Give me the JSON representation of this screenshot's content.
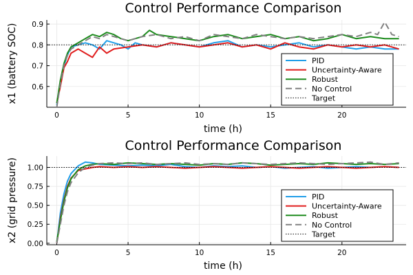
{
  "chart_data": [
    {
      "type": "line",
      "title": "Control Performance Comparison",
      "xlabel": "time (h)",
      "ylabel": "x1 (battery SOC)",
      "xlim": [
        -0.7,
        24.5
      ],
      "ylim": [
        0.5,
        0.92
      ],
      "xticks": [
        0,
        5,
        10,
        15,
        20
      ],
      "yticks": [
        0.6,
        0.7,
        0.8,
        0.9
      ],
      "ytick_labels": [
        "0.6",
        "0.7",
        "0.8",
        "0.9"
      ],
      "grid": true,
      "legend_position": "bottom-right",
      "target": 0.8,
      "target_label": "Target",
      "series": [
        {
          "name": "PID",
          "color": "#1f9ee8",
          "dash": "solid",
          "points": [
            [
              0,
              0.51
            ],
            [
              0.25,
              0.62
            ],
            [
              0.5,
              0.7
            ],
            [
              0.75,
              0.75
            ],
            [
              1,
              0.79
            ],
            [
              1.5,
              0.8
            ],
            [
              2,
              0.81
            ],
            [
              2.5,
              0.8
            ],
            [
              3,
              0.78
            ],
            [
              3.5,
              0.82
            ],
            [
              4,
              0.81
            ],
            [
              4.5,
              0.8
            ],
            [
              5,
              0.78
            ],
            [
              5.5,
              0.81
            ],
            [
              6,
              0.8
            ],
            [
              7,
              0.79
            ],
            [
              8,
              0.81
            ],
            [
              9,
              0.8
            ],
            [
              10,
              0.79
            ],
            [
              11,
              0.81
            ],
            [
              12,
              0.82
            ],
            [
              13,
              0.79
            ],
            [
              14,
              0.8
            ],
            [
              15,
              0.79
            ],
            [
              16,
              0.8
            ],
            [
              17,
              0.81
            ],
            [
              18,
              0.79
            ],
            [
              19,
              0.8
            ],
            [
              20,
              0.79
            ],
            [
              21,
              0.78
            ],
            [
              22,
              0.79
            ],
            [
              23,
              0.78
            ],
            [
              24,
              0.78
            ]
          ]
        },
        {
          "name": "Uncertainty-Aware",
          "color": "#e01b1b",
          "dash": "solid",
          "points": [
            [
              0,
              0.52
            ],
            [
              0.25,
              0.6
            ],
            [
              0.5,
              0.69
            ],
            [
              0.75,
              0.72
            ],
            [
              1,
              0.76
            ],
            [
              1.5,
              0.78
            ],
            [
              2,
              0.76
            ],
            [
              2.5,
              0.74
            ],
            [
              3,
              0.79
            ],
            [
              3.5,
              0.76
            ],
            [
              4,
              0.78
            ],
            [
              5,
              0.79
            ],
            [
              6,
              0.8
            ],
            [
              7,
              0.79
            ],
            [
              8,
              0.81
            ],
            [
              9,
              0.8
            ],
            [
              10,
              0.79
            ],
            [
              11,
              0.8
            ],
            [
              12,
              0.81
            ],
            [
              13,
              0.79
            ],
            [
              14,
              0.8
            ],
            [
              15,
              0.78
            ],
            [
              16,
              0.81
            ],
            [
              17,
              0.79
            ],
            [
              18,
              0.78
            ],
            [
              19,
              0.8
            ],
            [
              20,
              0.79
            ],
            [
              21,
              0.8
            ],
            [
              22,
              0.79
            ],
            [
              23,
              0.8
            ],
            [
              24,
              0.78
            ]
          ]
        },
        {
          "name": "Robust",
          "color": "#1c8a1c",
          "dash": "solid",
          "points": [
            [
              0,
              0.52
            ],
            [
              0.25,
              0.63
            ],
            [
              0.5,
              0.71
            ],
            [
              0.75,
              0.76
            ],
            [
              1,
              0.79
            ],
            [
              1.5,
              0.81
            ],
            [
              2,
              0.83
            ],
            [
              2.5,
              0.85
            ],
            [
              3,
              0.84
            ],
            [
              3.5,
              0.86
            ],
            [
              4,
              0.85
            ],
            [
              4.5,
              0.83
            ],
            [
              5,
              0.82
            ],
            [
              5.5,
              0.83
            ],
            [
              6,
              0.84
            ],
            [
              6.5,
              0.87
            ],
            [
              7,
              0.85
            ],
            [
              8,
              0.84
            ],
            [
              9,
              0.83
            ],
            [
              10,
              0.82
            ],
            [
              11,
              0.84
            ],
            [
              12,
              0.85
            ],
            [
              13,
              0.83
            ],
            [
              14,
              0.84
            ],
            [
              15,
              0.85
            ],
            [
              16,
              0.83
            ],
            [
              17,
              0.84
            ],
            [
              18,
              0.82
            ],
            [
              19,
              0.83
            ],
            [
              20,
              0.85
            ],
            [
              21,
              0.83
            ],
            [
              22,
              0.84
            ],
            [
              23,
              0.83
            ],
            [
              24,
              0.83
            ]
          ]
        },
        {
          "name": "No Control",
          "color": "#808080",
          "dash": "dashed",
          "points": [
            [
              0,
              0.5
            ],
            [
              0.25,
              0.61
            ],
            [
              0.5,
              0.7
            ],
            [
              0.75,
              0.75
            ],
            [
              1,
              0.78
            ],
            [
              1.5,
              0.8
            ],
            [
              2,
              0.82
            ],
            [
              2.5,
              0.84
            ],
            [
              3,
              0.83
            ],
            [
              3.5,
              0.85
            ],
            [
              4,
              0.84
            ],
            [
              5,
              0.82
            ],
            [
              6,
              0.84
            ],
            [
              7,
              0.85
            ],
            [
              8,
              0.83
            ],
            [
              9,
              0.84
            ],
            [
              10,
              0.82
            ],
            [
              11,
              0.85
            ],
            [
              12,
              0.84
            ],
            [
              13,
              0.83
            ],
            [
              14,
              0.85
            ],
            [
              15,
              0.84
            ],
            [
              16,
              0.83
            ],
            [
              17,
              0.84
            ],
            [
              18,
              0.83
            ],
            [
              19,
              0.84
            ],
            [
              20,
              0.85
            ],
            [
              21,
              0.84
            ],
            [
              22,
              0.86
            ],
            [
              22.5,
              0.85
            ],
            [
              23,
              0.91
            ],
            [
              23.5,
              0.85
            ],
            [
              24,
              0.84
            ]
          ]
        }
      ]
    },
    {
      "type": "line",
      "title": "Control Performance Comparison",
      "xlabel": "time (h)",
      "ylabel": "x2 (grid pressure)",
      "xlim": [
        -0.7,
        24.5
      ],
      "ylim": [
        -0.02,
        1.15
      ],
      "xticks": [
        0,
        5,
        10,
        15,
        20
      ],
      "yticks": [
        0,
        0.25,
        0.5,
        0.75,
        1.0
      ],
      "ytick_labels": [
        "0.00",
        "0.25",
        "0.50",
        "0.75",
        "1.00"
      ],
      "grid": true,
      "legend_position": "bottom-right",
      "target": 1.0,
      "target_label": "Target",
      "series": [
        {
          "name": "PID",
          "color": "#1f9ee8",
          "dash": "solid",
          "points": [
            [
              0,
              0
            ],
            [
              0.25,
              0.4
            ],
            [
              0.5,
              0.65
            ],
            [
              0.75,
              0.82
            ],
            [
              1,
              0.92
            ],
            [
              1.5,
              1.02
            ],
            [
              2,
              1.07
            ],
            [
              2.5,
              1.06
            ],
            [
              3,
              1.04
            ],
            [
              4,
              1.03
            ],
            [
              5,
              1.02
            ],
            [
              6,
              1.03
            ],
            [
              7,
              1.02
            ],
            [
              8,
              1.04
            ],
            [
              9,
              1.01
            ],
            [
              10,
              1.0
            ],
            [
              11,
              1.02
            ],
            [
              12,
              1.01
            ],
            [
              13,
              1.02
            ],
            [
              14,
              1.0
            ],
            [
              15,
              1.01
            ],
            [
              16,
              0.99
            ],
            [
              17,
              1.0
            ],
            [
              18,
              1.01
            ],
            [
              19,
              0.99
            ],
            [
              20,
              1.0
            ],
            [
              21,
              1.01
            ],
            [
              22,
              1.0
            ],
            [
              23,
              1.01
            ],
            [
              24,
              1.0
            ]
          ]
        },
        {
          "name": "Uncertainty-Aware",
          "color": "#e01b1b",
          "dash": "solid",
          "points": [
            [
              0,
              0
            ],
            [
              0.25,
              0.33
            ],
            [
              0.5,
              0.57
            ],
            [
              0.75,
              0.75
            ],
            [
              1,
              0.86
            ],
            [
              1.5,
              0.96
            ],
            [
              2,
              0.98
            ],
            [
              2.5,
              1.0
            ],
            [
              3,
              1.01
            ],
            [
              4,
              1.0
            ],
            [
              5,
              1.01
            ],
            [
              6,
              1.0
            ],
            [
              7,
              1.01
            ],
            [
              8,
              1.0
            ],
            [
              9,
              0.99
            ],
            [
              10,
              1.0
            ],
            [
              11,
              1.01
            ],
            [
              12,
              1.0
            ],
            [
              13,
              0.99
            ],
            [
              14,
              1.0
            ],
            [
              15,
              1.01
            ],
            [
              16,
              1.0
            ],
            [
              17,
              0.99
            ],
            [
              18,
              1.0
            ],
            [
              19,
              1.01
            ],
            [
              20,
              1.0
            ],
            [
              21,
              0.99
            ],
            [
              22,
              1.0
            ],
            [
              23,
              1.01
            ],
            [
              24,
              1.0
            ]
          ]
        },
        {
          "name": "Robust",
          "color": "#1c8a1c",
          "dash": "solid",
          "points": [
            [
              0,
              0.02
            ],
            [
              0.25,
              0.3
            ],
            [
              0.5,
              0.55
            ],
            [
              0.75,
              0.73
            ],
            [
              1,
              0.85
            ],
            [
              1.5,
              0.97
            ],
            [
              2,
              1.02
            ],
            [
              2.5,
              1.04
            ],
            [
              3,
              1.05
            ],
            [
              4,
              1.04
            ],
            [
              5,
              1.06
            ],
            [
              6,
              1.05
            ],
            [
              7,
              1.04
            ],
            [
              8,
              1.05
            ],
            [
              9,
              1.04
            ],
            [
              10,
              1.03
            ],
            [
              11,
              1.05
            ],
            [
              12,
              1.04
            ],
            [
              13,
              1.06
            ],
            [
              14,
              1.05
            ],
            [
              15,
              1.03
            ],
            [
              16,
              1.04
            ],
            [
              17,
              1.05
            ],
            [
              18,
              1.04
            ],
            [
              19,
              1.06
            ],
            [
              20,
              1.05
            ],
            [
              21,
              1.04
            ],
            [
              22,
              1.05
            ],
            [
              23,
              1.04
            ],
            [
              24,
              1.05
            ]
          ]
        },
        {
          "name": "No Control",
          "color": "#808080",
          "dash": "dashed",
          "points": [
            [
              0,
              0
            ],
            [
              0.25,
              0.25
            ],
            [
              0.5,
              0.5
            ],
            [
              0.75,
              0.68
            ],
            [
              1,
              0.8
            ],
            [
              1.5,
              0.93
            ],
            [
              2,
              1.0
            ],
            [
              2.5,
              1.03
            ],
            [
              3,
              1.05
            ],
            [
              4,
              1.06
            ],
            [
              5,
              1.05
            ],
            [
              6,
              1.06
            ],
            [
              7,
              1.04
            ],
            [
              8,
              1.05
            ],
            [
              9,
              1.06
            ],
            [
              10,
              1.04
            ],
            [
              11,
              1.05
            ],
            [
              12,
              1.04
            ],
            [
              13,
              1.06
            ],
            [
              14,
              1.05
            ],
            [
              15,
              1.04
            ],
            [
              16,
              1.05
            ],
            [
              17,
              1.06
            ],
            [
              18,
              1.05
            ],
            [
              19,
              1.04
            ],
            [
              20,
              1.05
            ],
            [
              21,
              1.06
            ],
            [
              22,
              1.07
            ],
            [
              23,
              1.04
            ],
            [
              24,
              1.06
            ]
          ]
        }
      ]
    }
  ]
}
